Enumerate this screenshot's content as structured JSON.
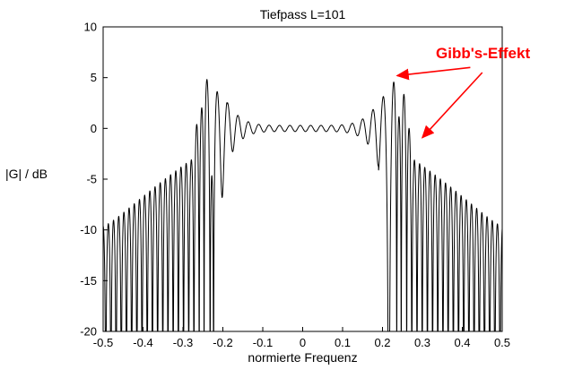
{
  "chart_data": {
    "type": "line",
    "title": "Tiefpass L=101",
    "xlabel": "normierte Frequenz",
    "ylabel": "|G| / dB",
    "xlim": [
      -0.5,
      0.5
    ],
    "ylim": [
      -20,
      10
    ],
    "xticks": [
      -0.5,
      -0.4,
      -0.3,
      -0.2,
      -0.1,
      0,
      0.1,
      0.2,
      0.3,
      0.4,
      0.5
    ],
    "xtick_labels": [
      "-0.5",
      "-0.4",
      "-0.3",
      "-0.2",
      "-0.1",
      "0",
      "0.1",
      "0.2",
      "0.3",
      "0.4",
      "0.5"
    ],
    "yticks": [
      10,
      5,
      0,
      -5,
      -10,
      -15,
      -20
    ],
    "ytick_labels": [
      "10",
      "5",
      "0",
      "-5",
      "-10",
      "-15",
      "-20"
    ],
    "grid": false,
    "line_color": "#000000",
    "axis_color": "#000000",
    "background_color": "#ffffff",
    "filter": {
      "type_label": "Tiefpass",
      "length_L": 101,
      "cutoff_normalized": 0.25,
      "passband_level_db": 0,
      "max_overshoot_db": 4.5,
      "stopband_first_lobe_db": -3,
      "stopband_edge_lobe_db": -9.5
    },
    "curve_model": {
      "samples": 6000,
      "ripple_period": 0.026,
      "passband_end": 0.19,
      "transition_end": 0.27,
      "passband_ripple_base": 0.035,
      "passband_ripple_growth": 0.32,
      "passband_ripple_exp": 6,
      "edge_ripple_base": 0.355,
      "edge_ripple_gain": 1.1,
      "edge_ripple_center": 0.245,
      "edge_ripple_sigma": 0.03,
      "stopband_lobe_start": 0.72,
      "stopband_lobe_end": 0.33,
      "stopband_decay_exp": 1.3,
      "clip_db": -20
    },
    "annotation": {
      "label": "Gibb's-Effekt",
      "color": "#ff0000",
      "arrows": [
        {
          "tail": {
            "f": 0.42,
            "db": 6.0
          },
          "tip": {
            "f": 0.237,
            "db": 5.2
          }
        },
        {
          "tail": {
            "f": 0.45,
            "db": 5.5
          },
          "tip": {
            "f": 0.3,
            "db": -0.9
          }
        }
      ]
    }
  }
}
